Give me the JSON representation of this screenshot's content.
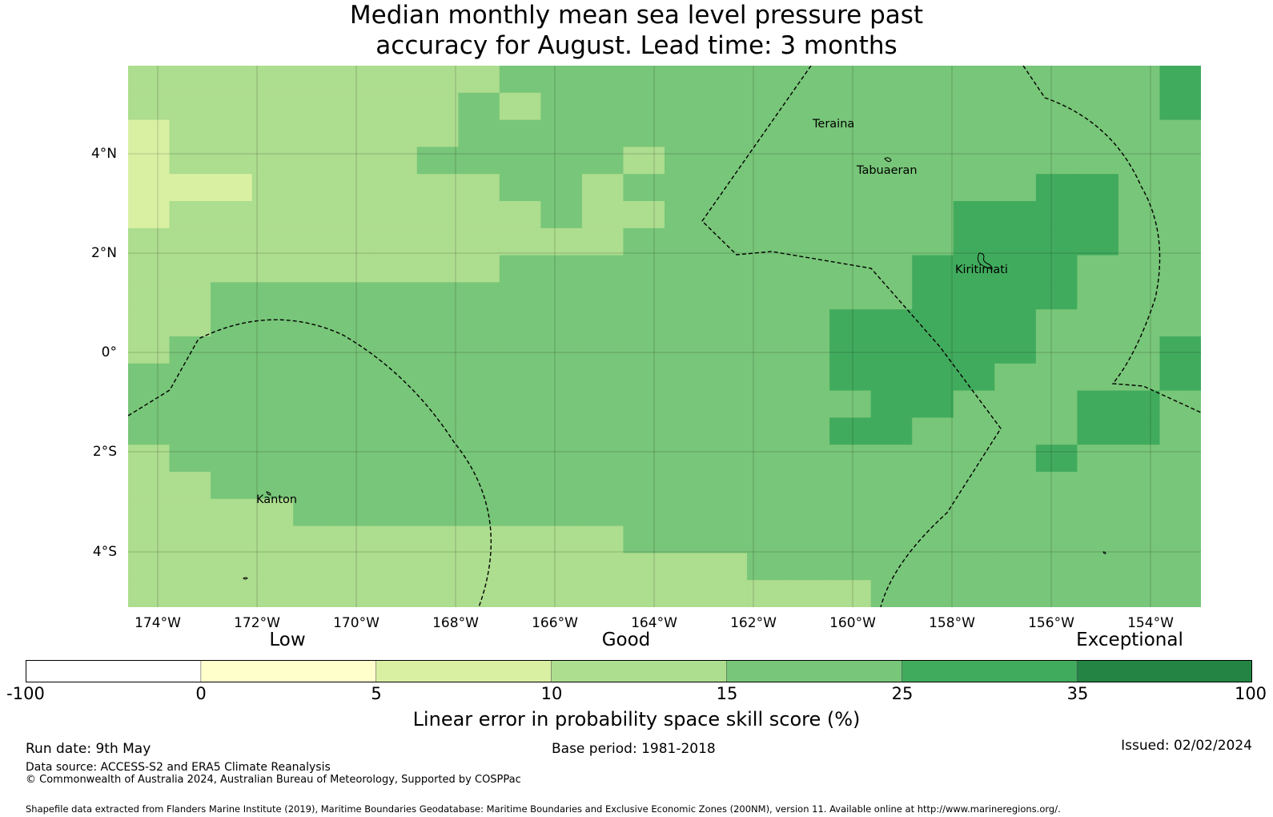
{
  "title": {
    "line1": "Median monthly mean sea level pressure past",
    "line2": "accuracy for August. Lead time: 3 months"
  },
  "map": {
    "x_ticks": [
      "174°W",
      "172°W",
      "170°W",
      "168°W",
      "166°W",
      "164°W",
      "162°W",
      "160°W",
      "158°W",
      "156°W",
      "154°W"
    ],
    "y_ticks": [
      "4°N",
      "2°N",
      "0°",
      "2°S",
      "4°S"
    ],
    "places": [
      "Teraina",
      "Tabuaeran",
      "Kiritimati",
      "Kanton"
    ],
    "colors": {
      "skill_5_10": "#d9f0a3",
      "skill_10_15": "#addd8e",
      "skill_15_25": "#78c679",
      "skill_25_35": "#41ab5d",
      "eez_boundary": "#000000"
    }
  },
  "legend": {
    "categories": [
      "Low",
      "Good",
      "Exceptional"
    ],
    "ticks": [
      "-100",
      "0",
      "5",
      "10",
      "15",
      "25",
      "35",
      "100"
    ],
    "colors": [
      "#ffffff",
      "#ffffcc",
      "#d9f0a3",
      "#addd8e",
      "#78c679",
      "#41ab5d",
      "#238443"
    ],
    "label": "Linear error in probability space skill score (%)"
  },
  "footer": {
    "run_date": "Run date: 9th May",
    "base_period": "Base period: 1981-2018",
    "issued": "Issued: 02/02/2024",
    "data_source": "Data source: ACCESS-S2 and ERA5 Climate Reanalysis",
    "copyright": "© Commonwealth of Australia 2024, Australian Bureau of Meteorology, Supported by COSPPac",
    "shapefile": "Shapefile data extracted from Flanders Marine Institute (2019), Maritime Boundaries Geodatabase: Maritime Boundaries and Exclusive Economic Zones (200NM), version 11. Available online at http://www.marineregions.org/."
  }
}
